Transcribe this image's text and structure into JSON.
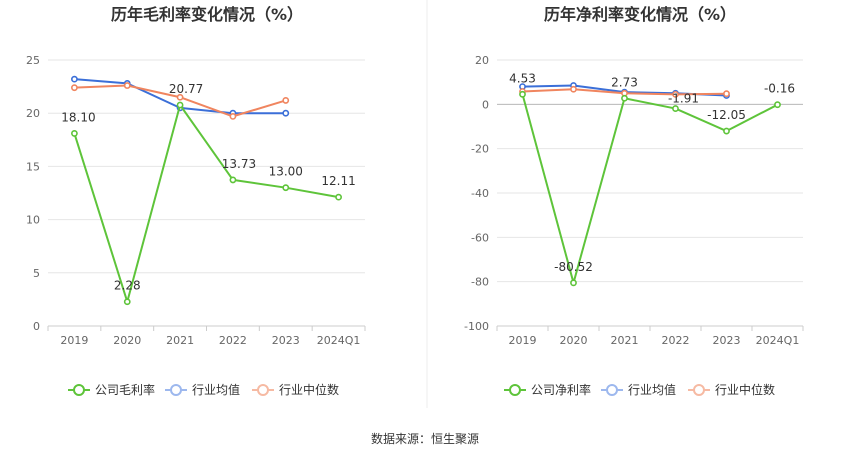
{
  "source_label": "数据来源：恒生聚源",
  "chart_data": [
    {
      "type": "line",
      "title": "历年毛利率变化情况（%）",
      "categories": [
        "2019",
        "2020",
        "2021",
        "2022",
        "2023",
        "2024Q1"
      ],
      "ylim": [
        0,
        25
      ],
      "yticks": [
        0,
        5,
        10,
        15,
        20,
        25
      ],
      "grid": true,
      "legend_position": "bottom",
      "series": [
        {
          "name": "公司毛利率",
          "color": "#5ec43a",
          "values": [
            18.1,
            2.28,
            20.77,
            13.73,
            13.0,
            12.11
          ],
          "labels": [
            "18.10",
            "2.28",
            "20.77",
            "13.73",
            "13.00",
            "12.11"
          ]
        },
        {
          "name": "行业均值",
          "color": "#3b6fd8",
          "legend_color": "#9db8ee",
          "values": [
            23.2,
            22.8,
            20.5,
            20.0,
            20.0,
            null
          ]
        },
        {
          "name": "行业中位数",
          "color": "#f0855f",
          "legend_color": "#f6baa3",
          "values": [
            22.4,
            22.6,
            21.5,
            19.7,
            21.2,
            null
          ]
        }
      ]
    },
    {
      "type": "line",
      "title": "历年净利率变化情况（%）",
      "categories": [
        "2019",
        "2020",
        "2021",
        "2022",
        "2023",
        "2024Q1"
      ],
      "ylim": [
        -100,
        20
      ],
      "yticks": [
        -100,
        -80,
        -60,
        -40,
        -20,
        0,
        20
      ],
      "grid": true,
      "legend_position": "bottom",
      "series": [
        {
          "name": "公司净利率",
          "color": "#5ec43a",
          "values": [
            4.53,
            -80.52,
            2.73,
            -1.91,
            -12.05,
            -0.16
          ],
          "labels": [
            "4.53",
            "-80.52",
            "2.73",
            "-1.91",
            "-12.05",
            "-0.16"
          ]
        },
        {
          "name": "行业均值",
          "color": "#3b6fd8",
          "legend_color": "#9db8ee",
          "values": [
            8.0,
            8.5,
            5.5,
            5.0,
            4.0,
            null
          ]
        },
        {
          "name": "行业中位数",
          "color": "#f0855f",
          "legend_color": "#f6baa3",
          "values": [
            5.8,
            6.8,
            5.0,
            4.5,
            4.8,
            null
          ]
        }
      ]
    }
  ]
}
